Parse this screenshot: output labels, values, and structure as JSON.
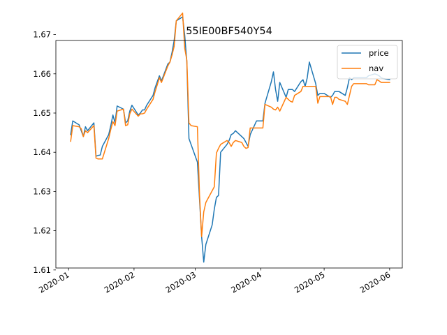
{
  "chart_data": {
    "type": "line",
    "title": "55IE00BF540Y54",
    "xlabel": "",
    "ylabel": "",
    "x_ticks": [
      "2020-01",
      "2020-02",
      "2020-03",
      "2020-04",
      "2020-05",
      "2020-06"
    ],
    "y_ticks": [
      "1.61",
      "1.62",
      "1.63",
      "1.64",
      "1.65",
      "1.66",
      "1.67"
    ],
    "xlim": [
      "2019-12-26",
      "2020-06-07"
    ],
    "ylim": [
      1.6105,
      1.6685
    ],
    "grid": false,
    "legend_position": "top-right",
    "x": [
      "2020-01-02",
      "2020-01-03",
      "2020-01-06",
      "2020-01-07",
      "2020-01-08",
      "2020-01-09",
      "2020-01-10",
      "2020-01-13",
      "2020-01-14",
      "2020-01-15",
      "2020-01-16",
      "2020-01-17",
      "2020-01-20",
      "2020-01-21",
      "2020-01-22",
      "2020-01-23",
      "2020-01-24",
      "2020-01-27",
      "2020-01-28",
      "2020-01-29",
      "2020-01-30",
      "2020-01-31",
      "2020-02-03",
      "2020-02-04",
      "2020-02-05",
      "2020-02-06",
      "2020-02-07",
      "2020-02-10",
      "2020-02-11",
      "2020-02-12",
      "2020-02-13",
      "2020-02-14",
      "2020-02-17",
      "2020-02-18",
      "2020-02-19",
      "2020-02-20",
      "2020-02-21",
      "2020-02-24",
      "2020-02-25",
      "2020-02-26",
      "2020-02-27",
      "2020-02-28",
      "2020-03-02",
      "2020-03-03",
      "2020-03-04",
      "2020-03-05",
      "2020-03-06",
      "2020-03-09",
      "2020-03-10",
      "2020-03-11",
      "2020-03-12",
      "2020-03-13",
      "2020-03-16",
      "2020-03-17",
      "2020-03-18",
      "2020-03-19",
      "2020-03-20",
      "2020-03-23",
      "2020-03-24",
      "2020-03-25",
      "2020-03-26",
      "2020-03-27",
      "2020-03-30",
      "2020-03-31",
      "2020-04-01",
      "2020-04-02",
      "2020-04-03",
      "2020-04-06",
      "2020-04-07",
      "2020-04-08",
      "2020-04-09",
      "2020-04-10",
      "2020-04-13",
      "2020-04-14",
      "2020-04-15",
      "2020-04-16",
      "2020-04-17",
      "2020-04-20",
      "2020-04-21",
      "2020-04-22",
      "2020-04-23",
      "2020-04-24",
      "2020-04-27",
      "2020-04-28",
      "2020-04-29",
      "2020-04-30",
      "2020-05-01",
      "2020-05-04",
      "2020-05-05",
      "2020-05-06",
      "2020-05-07",
      "2020-05-08",
      "2020-05-11",
      "2020-05-12",
      "2020-05-13",
      "2020-05-14",
      "2020-05-15",
      "2020-05-18",
      "2020-05-19",
      "2020-05-20",
      "2020-05-21",
      "2020-05-22",
      "2020-05-25",
      "2020-05-26",
      "2020-05-27",
      "2020-05-28",
      "2020-05-29",
      "2020-06-01"
    ],
    "series": [
      {
        "name": "price",
        "color": "#1f77b4",
        "values": [
          1.6445,
          1.648,
          1.647,
          1.6455,
          1.644,
          1.6465,
          1.6455,
          1.6475,
          1.639,
          1.6392,
          1.6393,
          1.6415,
          1.6445,
          1.6468,
          1.6495,
          1.6475,
          1.6518,
          1.651,
          1.6475,
          1.648,
          1.6505,
          1.652,
          1.6495,
          1.65,
          1.6508,
          1.6508,
          1.652,
          1.6545,
          1.6565,
          1.658,
          1.6595,
          1.6582,
          1.6625,
          1.663,
          1.6655,
          1.6685,
          1.6735,
          1.6745,
          1.6698,
          1.663,
          1.6435,
          1.642,
          1.6375,
          1.628,
          1.6185,
          1.612,
          1.6165,
          1.6215,
          1.6255,
          1.6285,
          1.629,
          1.64,
          1.642,
          1.643,
          1.6445,
          1.6448,
          1.6455,
          1.644,
          1.6435,
          1.6425,
          1.6415,
          1.6445,
          1.648,
          1.648,
          1.648,
          1.648,
          1.6525,
          1.658,
          1.6605,
          1.656,
          1.653,
          1.6578,
          1.654,
          1.656,
          1.656,
          1.656,
          1.6555,
          1.658,
          1.6585,
          1.6568,
          1.659,
          1.663,
          1.6575,
          1.6545,
          1.655,
          1.655,
          1.655,
          1.654,
          1.6545,
          1.6555,
          1.6555,
          1.6555,
          1.6545,
          1.6565,
          1.659,
          1.6585,
          1.659,
          1.659,
          1.659,
          1.659,
          1.659,
          1.6595,
          1.66,
          1.6598,
          1.6595,
          1.659,
          1.6588,
          1.6585
        ]
      },
      {
        "name": "nav",
        "color": "#ff7f0e",
        "values": [
          1.6428,
          1.6468,
          1.6465,
          1.646,
          1.644,
          1.6455,
          1.645,
          1.6468,
          1.6385,
          1.6383,
          1.6383,
          1.6383,
          1.6435,
          1.6458,
          1.6478,
          1.6468,
          1.6505,
          1.651,
          1.6468,
          1.647,
          1.6498,
          1.651,
          1.6492,
          1.6498,
          1.6498,
          1.65,
          1.651,
          1.6535,
          1.6555,
          1.6572,
          1.659,
          1.6578,
          1.662,
          1.663,
          1.6648,
          1.667,
          1.6735,
          1.6755,
          1.6665,
          1.6635,
          1.6475,
          1.6468,
          1.6465,
          1.6292,
          1.6185,
          1.6248,
          1.6272,
          1.6302,
          1.6312,
          1.6398,
          1.641,
          1.642,
          1.643,
          1.6425,
          1.6415,
          1.6425,
          1.643,
          1.6425,
          1.6415,
          1.641,
          1.6412,
          1.6462,
          1.6462,
          1.6462,
          1.6462,
          1.6462,
          1.6522,
          1.6515,
          1.651,
          1.6508,
          1.6515,
          1.6505,
          1.654,
          1.6535,
          1.653,
          1.6528,
          1.6545,
          1.6555,
          1.6568,
          1.6568,
          1.6568,
          1.6568,
          1.6568,
          1.6525,
          1.6542,
          1.6542,
          1.6542,
          1.6542,
          1.6522,
          1.654,
          1.654,
          1.6535,
          1.653,
          1.6522,
          1.6545,
          1.6568,
          1.6575,
          1.6575,
          1.6575,
          1.6575,
          1.6575,
          1.6572,
          1.6572,
          1.6585,
          1.6582,
          1.6578,
          1.6578,
          1.6578
        ]
      }
    ]
  }
}
